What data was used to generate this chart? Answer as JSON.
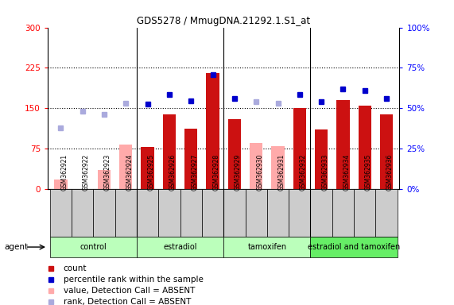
{
  "title": "GDS5278 / MmugDNA.21292.1.S1_at",
  "samples": [
    "GSM362921",
    "GSM362922",
    "GSM362923",
    "GSM362924",
    "GSM362925",
    "GSM362926",
    "GSM362927",
    "GSM362928",
    "GSM362929",
    "GSM362930",
    "GSM362931",
    "GSM362932",
    "GSM362933",
    "GSM362934",
    "GSM362935",
    "GSM362936"
  ],
  "count_values": [
    null,
    null,
    null,
    null,
    78,
    138,
    112,
    215,
    130,
    null,
    null,
    150,
    110,
    165,
    155,
    138
  ],
  "count_absent": [
    18,
    null,
    35,
    83,
    null,
    null,
    null,
    null,
    null,
    85,
    80,
    null,
    null,
    null,
    null,
    null
  ],
  "rank_values_pct": [
    null,
    null,
    null,
    null,
    52.5,
    58.5,
    54.5,
    71,
    56,
    null,
    null,
    58.5,
    54,
    62,
    61,
    56
  ],
  "rank_absent_pct": [
    38,
    48,
    46,
    53,
    null,
    null,
    null,
    null,
    null,
    54,
    53,
    null,
    null,
    null,
    null,
    null
  ],
  "ylim_left": [
    0,
    300
  ],
  "ylim_right": [
    0,
    100
  ],
  "yticks_left": [
    0,
    75,
    150,
    225,
    300
  ],
  "ytick_labels_left": [
    "0",
    "75",
    "150",
    "225",
    "300"
  ],
  "yticks_right": [
    0,
    25,
    50,
    75,
    100
  ],
  "ytick_labels_right": [
    "0%",
    "25%",
    "50%",
    "75%",
    "100%"
  ],
  "bar_color_present": "#cc1111",
  "bar_color_absent": "#ffaaaa",
  "dot_color_present": "#0000cc",
  "dot_color_absent": "#aaaadd",
  "bg_color": "#ffffff",
  "plot_bg_color": "#ffffff",
  "tick_bg_color": "#cccccc",
  "group_colors": [
    "#bbffbb",
    "#bbffbb",
    "#bbffbb",
    "#66ee66"
  ],
  "group_labels": [
    "control",
    "estradiol",
    "tamoxifen",
    "estradiol and tamoxifen"
  ],
  "group_ranges": [
    [
      0,
      3
    ],
    [
      4,
      7
    ],
    [
      8,
      11
    ],
    [
      12,
      15
    ]
  ],
  "agent_label": "agent",
  "legend_items": [
    {
      "color": "#cc1111",
      "label": "count",
      "marker": "s"
    },
    {
      "color": "#0000cc",
      "label": "percentile rank within the sample",
      "marker": "s"
    },
    {
      "color": "#ffaaaa",
      "label": "value, Detection Call = ABSENT",
      "marker": "s"
    },
    {
      "color": "#aaaadd",
      "label": "rank, Detection Call = ABSENT",
      "marker": "s"
    }
  ]
}
